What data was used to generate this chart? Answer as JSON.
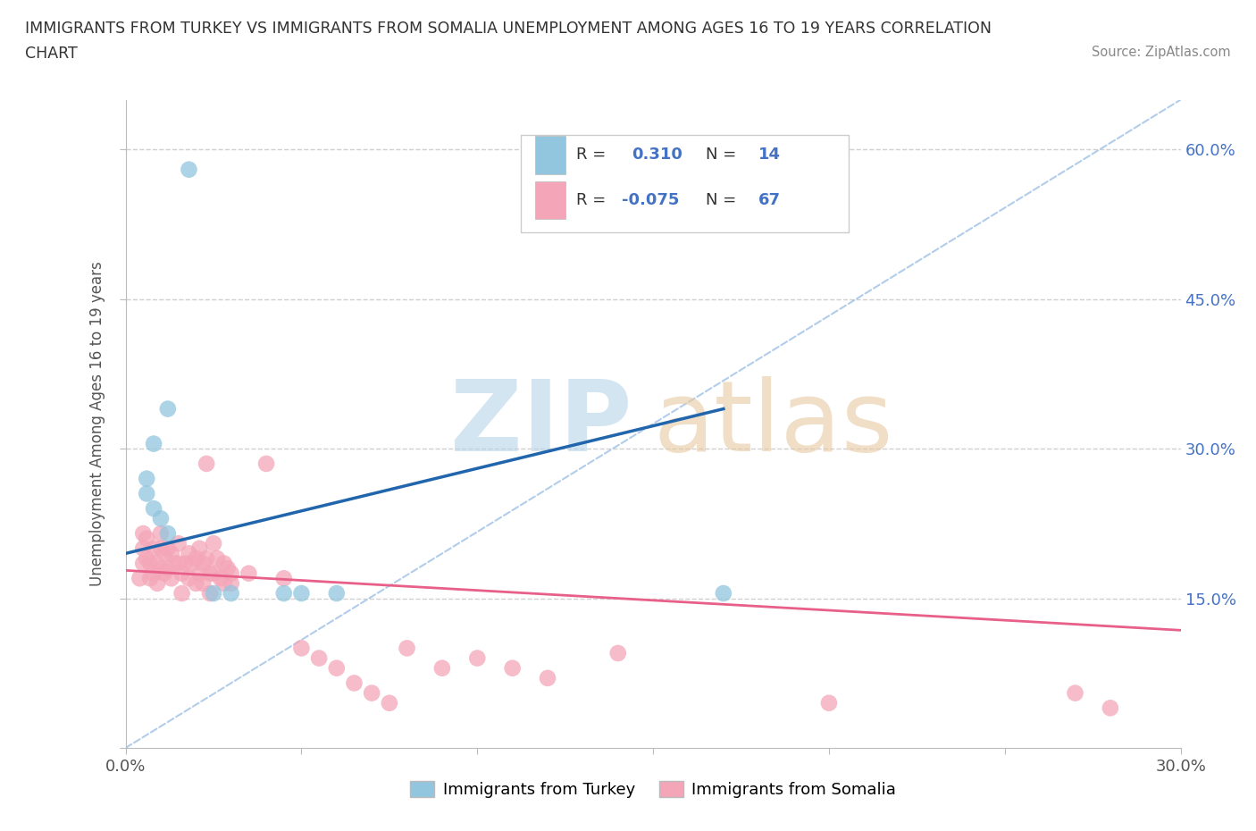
{
  "title_line1": "IMMIGRANTS FROM TURKEY VS IMMIGRANTS FROM SOMALIA UNEMPLOYMENT AMONG AGES 16 TO 19 YEARS CORRELATION",
  "title_line2": "CHART",
  "source_text": "Source: ZipAtlas.com",
  "ylabel": "Unemployment Among Ages 16 to 19 years",
  "xlim": [
    0.0,
    0.3
  ],
  "ylim": [
    0.0,
    0.65
  ],
  "xticks": [
    0.0,
    0.05,
    0.1,
    0.15,
    0.2,
    0.25,
    0.3
  ],
  "yticks": [
    0.0,
    0.15,
    0.3,
    0.45,
    0.6
  ],
  "right_yticklabels": [
    "",
    "15.0%",
    "30.0%",
    "45.0%",
    "60.0%"
  ],
  "turkey_color": "#92c5de",
  "somalia_color": "#f4a6b8",
  "turkey_line_color": "#2166ac",
  "somalia_line_color": "#e8608a",
  "diag_color": "#aac8e8",
  "background_color": "#ffffff",
  "grid_color": "#d0d0d0",
  "turkey_R": "0.310",
  "turkey_N": "14",
  "somalia_R": "-0.075",
  "somalia_N": "67",
  "turkey_scatter_x": [
    0.018,
    0.012,
    0.008,
    0.006,
    0.006,
    0.008,
    0.01,
    0.012,
    0.025,
    0.03,
    0.045,
    0.05,
    0.06,
    0.17
  ],
  "turkey_scatter_y": [
    0.58,
    0.34,
    0.305,
    0.27,
    0.255,
    0.24,
    0.23,
    0.215,
    0.155,
    0.155,
    0.155,
    0.155,
    0.155,
    0.155
  ],
  "somalia_scatter_x": [
    0.004,
    0.005,
    0.005,
    0.005,
    0.006,
    0.006,
    0.007,
    0.007,
    0.008,
    0.008,
    0.009,
    0.009,
    0.01,
    0.01,
    0.01,
    0.011,
    0.011,
    0.012,
    0.012,
    0.013,
    0.013,
    0.014,
    0.015,
    0.015,
    0.016,
    0.016,
    0.017,
    0.018,
    0.018,
    0.019,
    0.02,
    0.02,
    0.021,
    0.021,
    0.022,
    0.022,
    0.023,
    0.023,
    0.024,
    0.024,
    0.025,
    0.025,
    0.026,
    0.027,
    0.028,
    0.028,
    0.029,
    0.03,
    0.03,
    0.035,
    0.04,
    0.045,
    0.05,
    0.055,
    0.06,
    0.065,
    0.07,
    0.075,
    0.08,
    0.09,
    0.1,
    0.11,
    0.12,
    0.14,
    0.2,
    0.27,
    0.28
  ],
  "somalia_scatter_y": [
    0.17,
    0.215,
    0.2,
    0.185,
    0.21,
    0.19,
    0.185,
    0.17,
    0.2,
    0.175,
    0.185,
    0.165,
    0.215,
    0.2,
    0.18,
    0.195,
    0.175,
    0.2,
    0.18,
    0.195,
    0.17,
    0.185,
    0.205,
    0.185,
    0.175,
    0.155,
    0.185,
    0.195,
    0.17,
    0.185,
    0.19,
    0.165,
    0.2,
    0.175,
    0.185,
    0.165,
    0.285,
    0.19,
    0.175,
    0.155,
    0.205,
    0.175,
    0.19,
    0.17,
    0.185,
    0.165,
    0.18,
    0.175,
    0.165,
    0.175,
    0.285,
    0.17,
    0.1,
    0.09,
    0.08,
    0.065,
    0.055,
    0.045,
    0.1,
    0.08,
    0.09,
    0.08,
    0.07,
    0.095,
    0.045,
    0.055,
    0.04
  ],
  "turkey_trend_x": [
    0.0,
    0.17
  ],
  "turkey_trend_y": [
    0.195,
    0.34
  ],
  "somalia_trend_x": [
    0.0,
    0.3
  ],
  "somalia_trend_y": [
    0.178,
    0.118
  ]
}
